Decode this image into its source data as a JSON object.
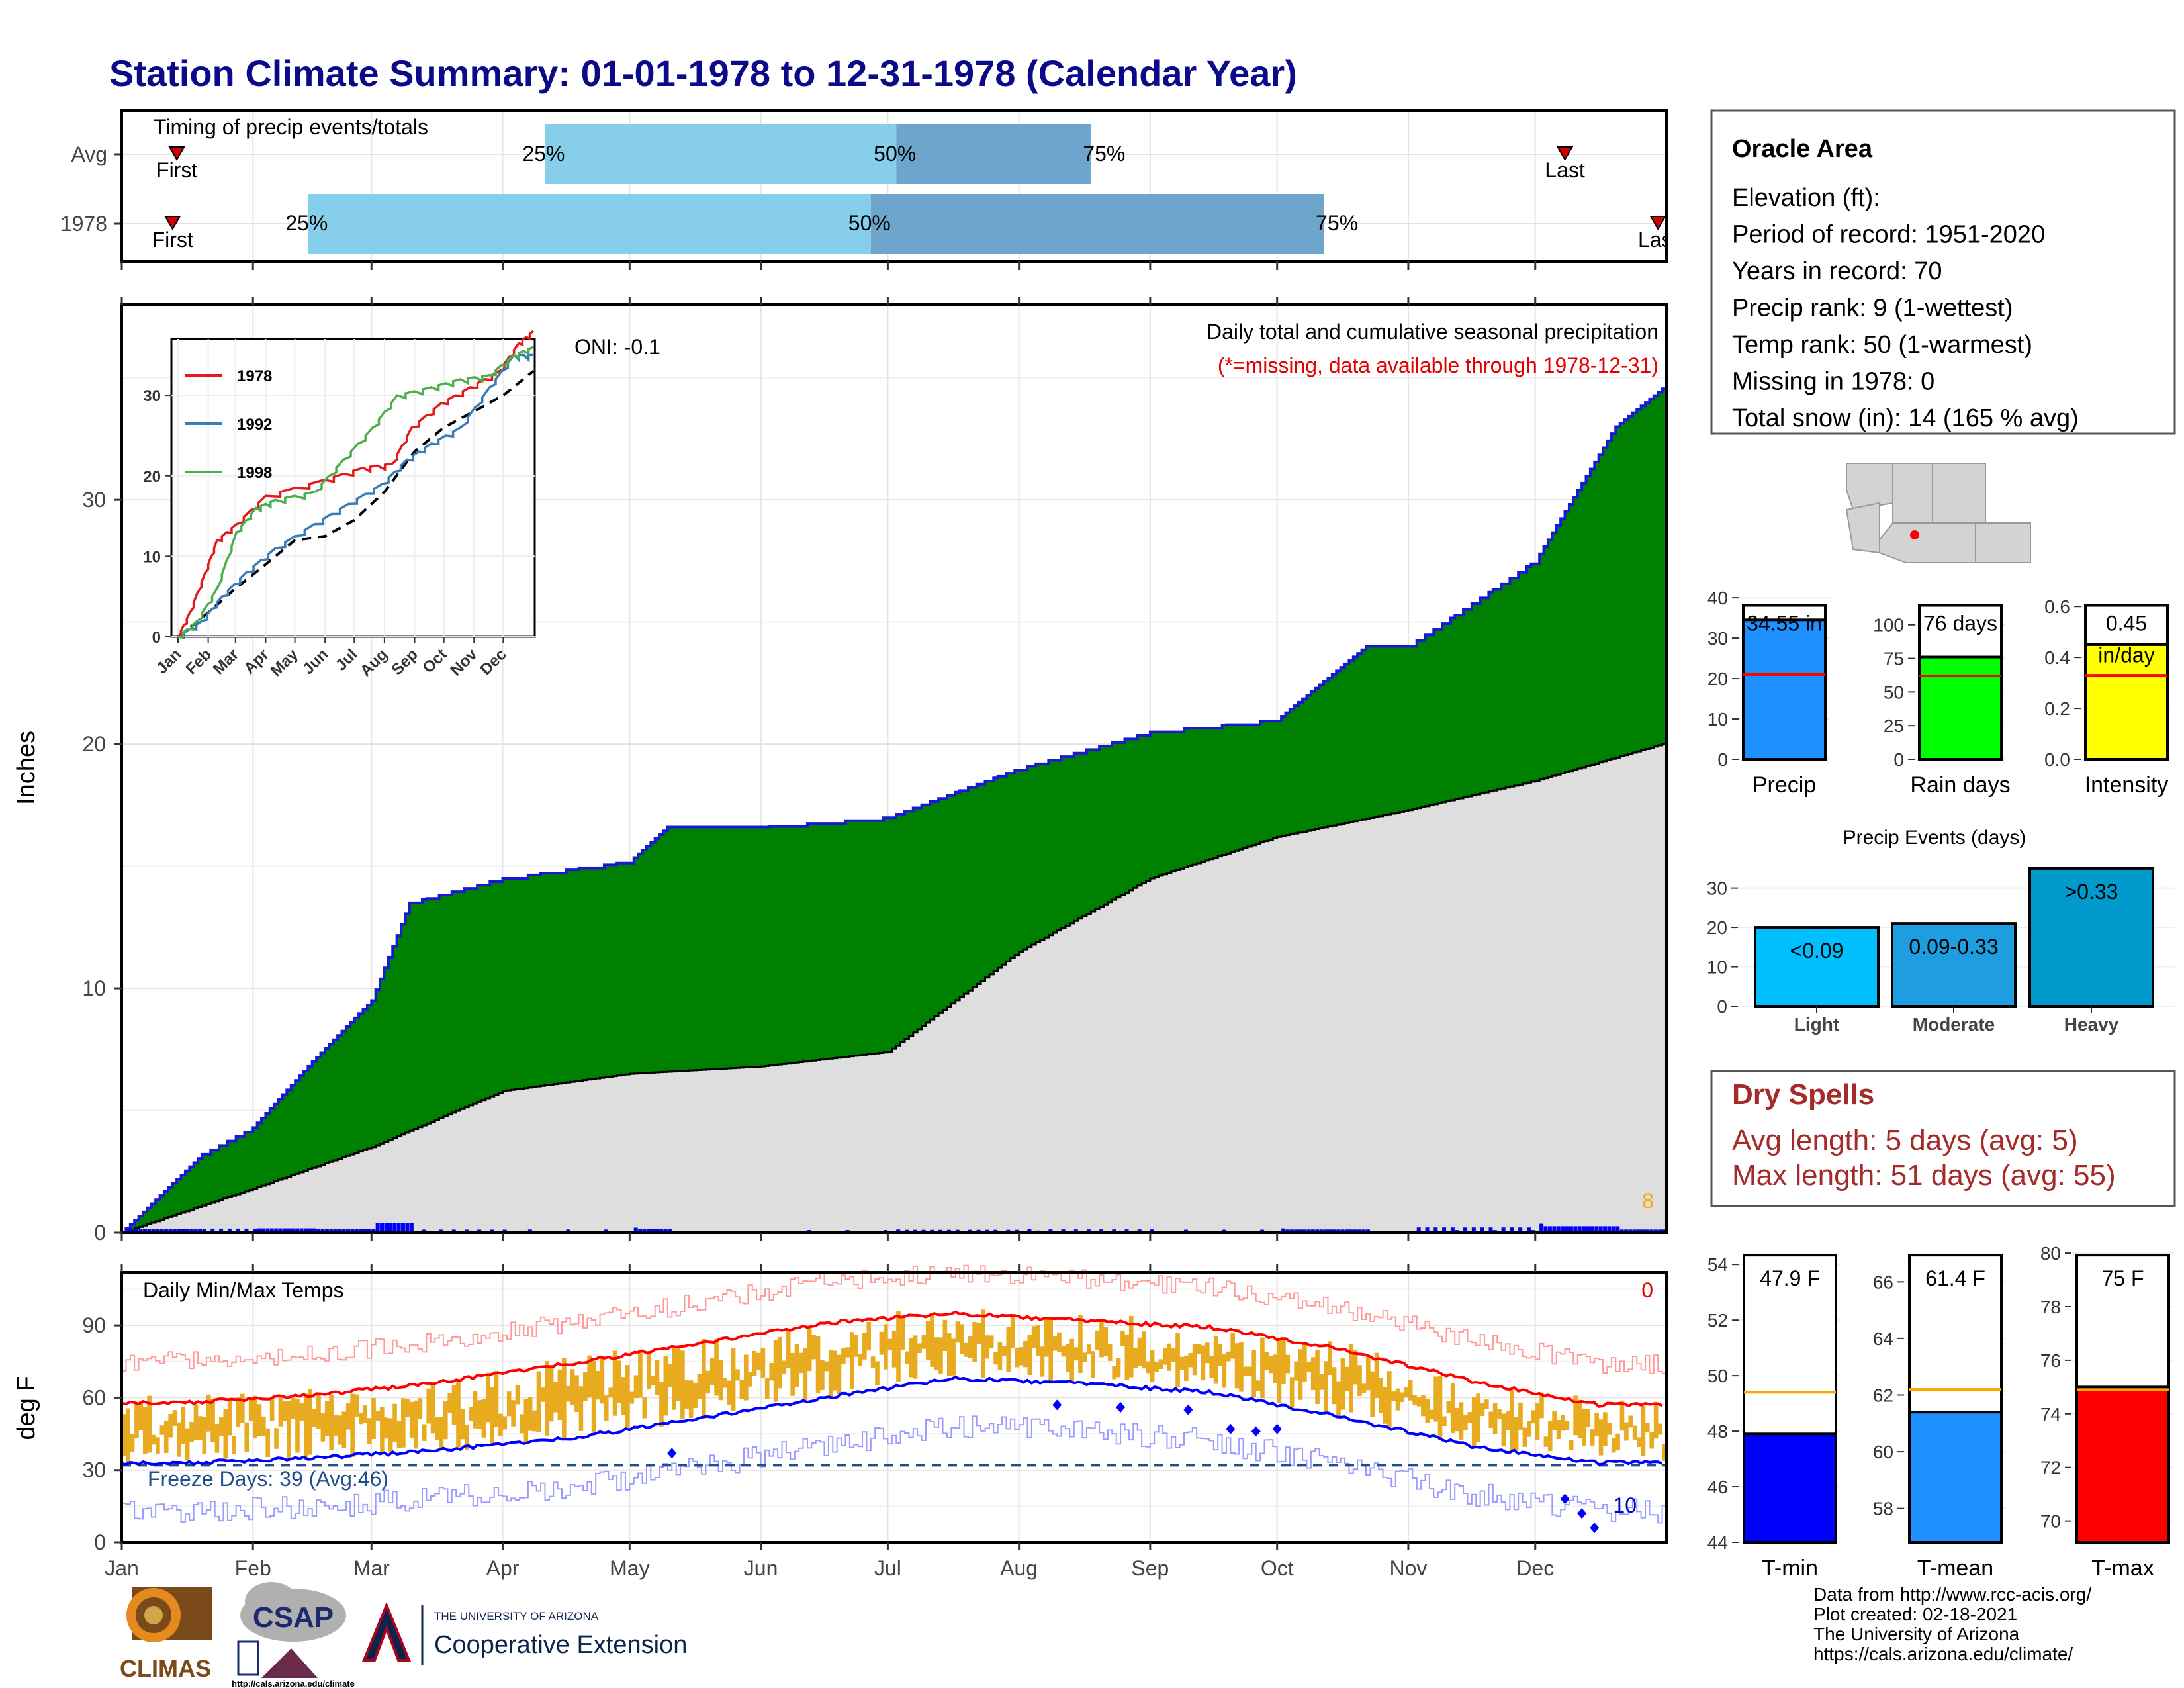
{
  "title": "Station Climate Summary: 01-01-1978 to 12-31-1978 (Calendar Year)",
  "months": [
    "Jan",
    "Feb",
    "Mar",
    "Apr",
    "May",
    "Jun",
    "Jul",
    "Aug",
    "Sep",
    "Oct",
    "Nov",
    "Dec"
  ],
  "timing": {
    "label": "Timing of precip events/totals",
    "rows": [
      {
        "name": "Avg",
        "first_label": "First",
        "last_label": "Last",
        "first_doy": 13,
        "p25_doy": 100,
        "p50_doy": 183,
        "p75_doy": 229,
        "last_doy": 341
      },
      {
        "name": "1978",
        "first_label": "First",
        "last_label": "Last",
        "first_doy": 12,
        "p25_doy": 44,
        "p50_doy": 177,
        "p75_doy": 284,
        "last_doy": 363
      }
    ],
    "pct_labels": [
      "25%",
      "50%",
      "75%"
    ],
    "colors": {
      "q1": "#87ceeb",
      "q2": "#6ea5cc",
      "marker": "#d40000"
    }
  },
  "precip_panel": {
    "ylabel": "Inches",
    "title": "Daily total and cumulative seasonal precipitation",
    "subtitle": "(*=missing, data available through 1978-12-31)",
    "oni": "ONI: -0.1",
    "event_count": "8",
    "yticks": [
      0,
      10,
      20,
      30
    ],
    "ymax": 38
  },
  "inset": {
    "yticks": [
      0,
      10,
      20,
      30
    ],
    "legend": [
      {
        "name": "1978",
        "color": "#e31a1c"
      },
      {
        "name": "1992",
        "color": "#377eb8"
      },
      {
        "name": "1998",
        "color": "#4daf4a"
      }
    ]
  },
  "info": {
    "station": "Oracle Area",
    "lines": [
      "Elevation (ft):",
      "Period of record: 1951-2020",
      "Years in record: 70",
      "Precip rank: 9 (1-wettest)",
      "Temp rank: 50 (1-warmest)",
      "Missing in 1978: 0",
      "Total snow (in): 14 (165 % avg)"
    ]
  },
  "mini_bars": [
    {
      "name": "Precip",
      "value": 34.55,
      "label": "34.55 in",
      "avg": 21,
      "ymax": 41,
      "yticks": [
        0,
        10,
        20,
        30,
        40
      ],
      "color": "#1e90ff"
    },
    {
      "name": "Rain days",
      "value": 76,
      "label": "76 days",
      "avg": 62,
      "ymax": 123,
      "yticks": [
        0,
        25,
        50,
        75,
        100
      ],
      "color": "#00ff00"
    },
    {
      "name": "Intensity",
      "value": 0.45,
      "label": "0.45",
      "label2": "in/day",
      "avg": 0.33,
      "ymax": 0.65,
      "yticks": [
        0.0,
        0.2,
        0.4,
        0.6
      ],
      "color": "#ffff00"
    }
  ],
  "events": {
    "title": "Precip Events (days)",
    "bars": [
      {
        "name": "Light",
        "value": 20,
        "label": "<0.09",
        "color": "#00bfff"
      },
      {
        "name": "Moderate",
        "value": 21,
        "label": "0.09-0.33",
        "color": "#1e9ee0"
      },
      {
        "name": "Heavy",
        "value": 35,
        "label": ">0.33",
        "color": "#009acd"
      }
    ],
    "yticks": [
      0,
      10,
      20,
      30
    ],
    "ymax": 37
  },
  "dry_spells": {
    "title": "Dry Spells",
    "avg": "Avg length: 5 days (avg: 5)",
    "max": "Max length: 51 days (avg: 55)"
  },
  "temp_panel": {
    "ylabel": "deg F",
    "title": "Daily Min/Max Temps",
    "hot_count": "0",
    "cold_count": "10",
    "freeze": "Freeze Days: 39 (Avg:46)",
    "yticks": [
      0,
      30,
      60,
      90
    ],
    "ymin": 0,
    "ymax": 112
  },
  "temp_bars": [
    {
      "name": "T-min",
      "value": 47.9,
      "label": "47.9 F",
      "avg": 49.4,
      "ymin": 44,
      "ymax": 54.6,
      "yticks": [
        44,
        46,
        48,
        50,
        52,
        54
      ],
      "color": "#0000ff"
    },
    {
      "name": "T-mean",
      "value": 61.4,
      "label": "61.4 F",
      "avg": 62.2,
      "ymin": 56.8,
      "ymax": 67.2,
      "yticks": [
        58,
        60,
        62,
        64,
        66
      ],
      "color": "#1e90ff"
    },
    {
      "name": "T-max",
      "value": 75,
      "label": "75 F",
      "avg": 74.9,
      "ymin": 69.2,
      "ymax": 80.2,
      "yticks": [
        70,
        72,
        74,
        76,
        78,
        80
      ],
      "color": "#ff0000"
    }
  ],
  "credits": [
    "Data from http://www.rcc-acis.org/",
    "Plot created: 02-18-2021",
    "The University of Arizona",
    "https://cals.arizona.edu/climate/"
  ],
  "logos": {
    "climas": "CLIMAS",
    "csap": "CSAP",
    "csap_url": "http://cals.arizona.edu/climate",
    "ua_small": "THE UNIVERSITY OF ARIZONA",
    "ua_big": "Cooperative Extension"
  },
  "chart_data": [
    {
      "type": "area",
      "title": "Daily total and cumulative seasonal precipitation",
      "ylabel": "Inches",
      "series": [
        {
          "name": "1978",
          "x": [
            "Jan 1",
            "Jan 20",
            "Feb 1",
            "Feb 15",
            "Mar 1",
            "Mar 10",
            "Apr 1",
            "May 1",
            "May 10",
            "Jun 1",
            "Jul 1",
            "Aug 1",
            "Sep 1",
            "Oct 1",
            "Oct 22",
            "Nov 1",
            "Dec 1",
            "Dec 20",
            "Dec 31"
          ],
          "values": [
            0,
            3.2,
            4.3,
            7,
            9.5,
            13.5,
            14.5,
            15.2,
            16.6,
            16.6,
            17,
            19,
            20.5,
            21,
            24,
            24,
            27.5,
            33,
            34.55
          ]
        },
        {
          "name": "Avg",
          "x": [
            "Jan 1",
            "Feb 1",
            "Mar 1",
            "Apr 1",
            "May 1",
            "Jun 1",
            "Jul 1",
            "Aug 1",
            "Sep 1",
            "Oct 1",
            "Nov 1",
            "Dec 1",
            "Dec 31"
          ],
          "values": [
            0,
            1.8,
            3.5,
            5.8,
            6.5,
            6.8,
            7.4,
            11.5,
            14.5,
            16.2,
            17.3,
            18.5,
            20
          ]
        }
      ],
      "ylim": [
        0,
        38
      ]
    },
    {
      "type": "line",
      "title": "Daily Min/Max Temps",
      "ylabel": "deg F",
      "series": [
        {
          "name": "Avg max",
          "x": [
            "Jan",
            "Feb",
            "Mar",
            "Apr",
            "May",
            "Jun",
            "Jul",
            "Aug",
            "Sep",
            "Oct",
            "Nov",
            "Dec"
          ],
          "values": [
            58,
            61,
            66,
            74,
            82,
            91,
            95,
            92,
            89,
            80,
            67,
            57
          ]
        },
        {
          "name": "Avg min",
          "x": [
            "Jan",
            "Feb",
            "Mar",
            "Apr",
            "May",
            "Jun",
            "Jul",
            "Aug",
            "Sep",
            "Oct",
            "Nov",
            "Dec"
          ],
          "values": [
            33,
            35,
            38,
            43,
            51,
            60,
            68,
            66,
            62,
            52,
            40,
            33
          ]
        }
      ],
      "ylim": [
        0,
        112
      ]
    }
  ]
}
